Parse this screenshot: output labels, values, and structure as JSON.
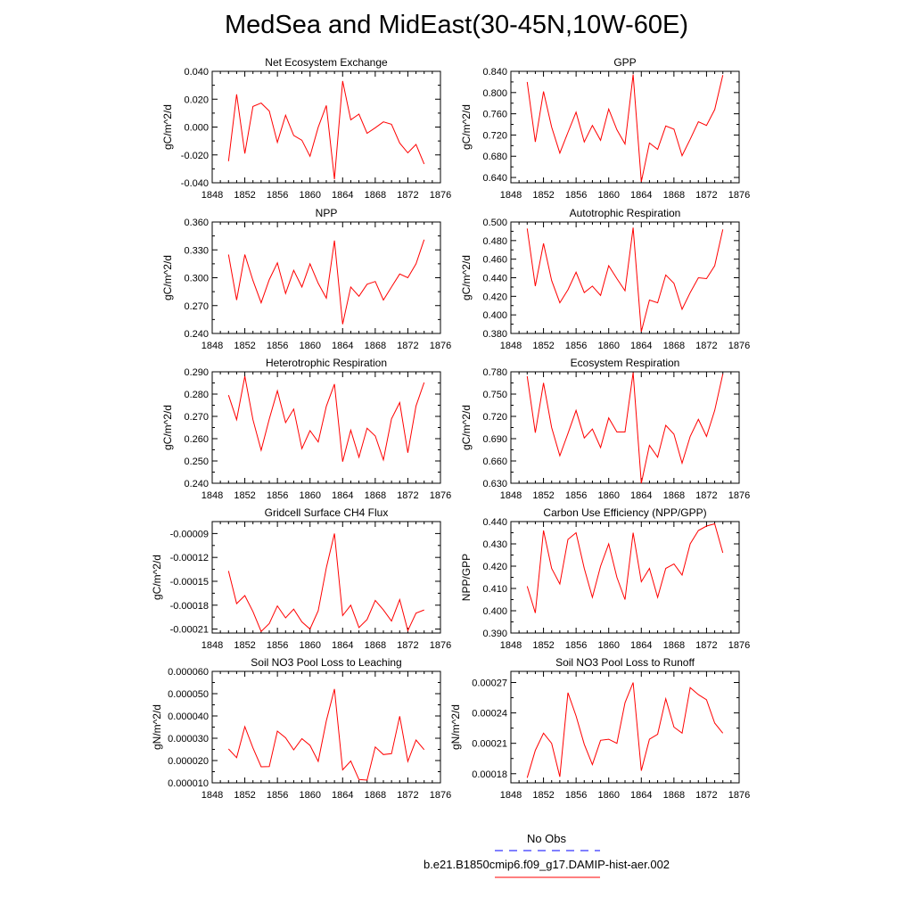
{
  "title": "MedSea and MidEast(30-45N,10W-60E)",
  "colors": {
    "model": "#ff0000",
    "obs": "#0000ff"
  },
  "legend": {
    "obs_label": "No Obs",
    "model_label": "b.e21.B1850cmip6.f09_g17.DAMIP-hist-aer.002"
  },
  "chart_data": [
    {
      "type": "line",
      "title": "Net Ecosystem Exchange",
      "ylabel": "gC/m^2/d",
      "xlim": [
        1848,
        1876
      ],
      "ylim": [
        -0.04,
        0.04
      ],
      "xticks": [
        1848,
        1852,
        1856,
        1860,
        1864,
        1868,
        1872,
        1876
      ],
      "xticklabels": [
        "1848",
        "1852",
        "1856",
        "1860",
        "1864",
        "1868",
        "1872",
        "1876"
      ],
      "yticks": [
        -0.04,
        -0.02,
        0.0,
        0.02,
        0.04
      ],
      "yticklabels": [
        "-0.040",
        "-0.020",
        "0.000",
        "0.020",
        "0.040"
      ],
      "x": [
        1850,
        1851,
        1852,
        1853,
        1854,
        1855,
        1856,
        1857,
        1858,
        1859,
        1860,
        1861,
        1862,
        1863,
        1864,
        1865,
        1866,
        1867,
        1868,
        1869,
        1870,
        1871,
        1872,
        1873,
        1874
      ],
      "y": [
        -0.0245,
        0.0235,
        -0.019,
        0.0148,
        0.0172,
        0.0115,
        -0.011,
        0.0085,
        -0.006,
        -0.0095,
        -0.021,
        -0.0001,
        0.0155,
        -0.0375,
        0.033,
        0.0052,
        0.0093,
        -0.0045,
        -0.0005,
        0.0037,
        0.002,
        -0.0115,
        -0.0185,
        -0.0125,
        -0.0265
      ]
    },
    {
      "type": "line",
      "title": "GPP",
      "ylabel": "gC/m^2/d",
      "xlim": [
        1848,
        1876
      ],
      "ylim": [
        0.63,
        0.84
      ],
      "xticks": [
        1848,
        1852,
        1856,
        1860,
        1864,
        1868,
        1872,
        1876
      ],
      "xticklabels": [
        "1848",
        "1852",
        "1856",
        "1860",
        "1864",
        "1868",
        "1872",
        "1876"
      ],
      "yticks": [
        0.64,
        0.68,
        0.72,
        0.76,
        0.8,
        0.84
      ],
      "yticklabels": [
        "0.640",
        "0.680",
        "0.720",
        "0.760",
        "0.800",
        "0.840"
      ],
      "x": [
        1850,
        1851,
        1852,
        1853,
        1854,
        1855,
        1856,
        1857,
        1858,
        1859,
        1860,
        1861,
        1862,
        1863,
        1864,
        1865,
        1866,
        1867,
        1868,
        1869,
        1870,
        1871,
        1872,
        1873,
        1874
      ],
      "y": [
        0.82,
        0.707,
        0.802,
        0.735,
        0.686,
        0.725,
        0.763,
        0.707,
        0.738,
        0.71,
        0.769,
        0.73,
        0.703,
        0.834,
        0.632,
        0.705,
        0.693,
        0.737,
        0.731,
        0.681,
        0.712,
        0.745,
        0.738,
        0.768,
        0.833
      ]
    },
    {
      "type": "line",
      "title": "NPP",
      "ylabel": "gC/m^2/d",
      "xlim": [
        1848,
        1876
      ],
      "ylim": [
        0.24,
        0.36
      ],
      "xticks": [
        1848,
        1852,
        1856,
        1860,
        1864,
        1868,
        1872,
        1876
      ],
      "xticklabels": [
        "1848",
        "1852",
        "1856",
        "1860",
        "1864",
        "1868",
        "1872",
        "1876"
      ],
      "yticks": [
        0.24,
        0.27,
        0.3,
        0.33,
        0.36
      ],
      "yticklabels": [
        "0.240",
        "0.270",
        "0.300",
        "0.330",
        "0.360"
      ],
      "x": [
        1850,
        1851,
        1852,
        1853,
        1854,
        1855,
        1856,
        1857,
        1858,
        1859,
        1860,
        1861,
        1862,
        1863,
        1864,
        1865,
        1866,
        1867,
        1868,
        1869,
        1870,
        1871,
        1872,
        1873,
        1874
      ],
      "y": [
        0.325,
        0.276,
        0.325,
        0.297,
        0.273,
        0.298,
        0.316,
        0.283,
        0.308,
        0.29,
        0.315,
        0.294,
        0.278,
        0.34,
        0.25,
        0.29,
        0.28,
        0.293,
        0.296,
        0.276,
        0.29,
        0.304,
        0.3,
        0.315,
        0.341
      ]
    },
    {
      "type": "line",
      "title": "Autotrophic Respiration",
      "ylabel": "gC/m^2/d",
      "xlim": [
        1848,
        1876
      ],
      "ylim": [
        0.38,
        0.5
      ],
      "xticks": [
        1848,
        1852,
        1856,
        1860,
        1864,
        1868,
        1872,
        1876
      ],
      "xticklabels": [
        "1848",
        "1852",
        "1856",
        "1860",
        "1864",
        "1868",
        "1872",
        "1876"
      ],
      "yticks": [
        0.38,
        0.4,
        0.42,
        0.44,
        0.46,
        0.48,
        0.5
      ],
      "yticklabels": [
        "0.380",
        "0.400",
        "0.420",
        "0.440",
        "0.460",
        "0.480",
        "0.500"
      ],
      "x": [
        1850,
        1851,
        1852,
        1853,
        1854,
        1855,
        1856,
        1857,
        1858,
        1859,
        1860,
        1861,
        1862,
        1863,
        1864,
        1865,
        1866,
        1867,
        1868,
        1869,
        1870,
        1871,
        1872,
        1873,
        1874
      ],
      "y": [
        0.493,
        0.431,
        0.477,
        0.437,
        0.413,
        0.427,
        0.446,
        0.424,
        0.431,
        0.421,
        0.453,
        0.439,
        0.426,
        0.494,
        0.382,
        0.416,
        0.413,
        0.443,
        0.434,
        0.406,
        0.424,
        0.44,
        0.439,
        0.453,
        0.492
      ]
    },
    {
      "type": "line",
      "title": "Heterotrophic Respiration",
      "ylabel": "gC/m^2/d",
      "xlim": [
        1848,
        1876
      ],
      "ylim": [
        0.24,
        0.29
      ],
      "xticks": [
        1848,
        1852,
        1856,
        1860,
        1864,
        1868,
        1872,
        1876
      ],
      "xticklabels": [
        "1848",
        "1852",
        "1856",
        "1860",
        "1864",
        "1868",
        "1872",
        "1876"
      ],
      "yticks": [
        0.24,
        0.25,
        0.26,
        0.27,
        0.28,
        0.29
      ],
      "yticklabels": [
        "0.240",
        "0.250",
        "0.260",
        "0.270",
        "0.280",
        "0.290"
      ],
      "x": [
        1850,
        1851,
        1852,
        1853,
        1854,
        1855,
        1856,
        1857,
        1858,
        1859,
        1860,
        1861,
        1862,
        1863,
        1864,
        1865,
        1866,
        1867,
        1868,
        1869,
        1870,
        1871,
        1872,
        1873,
        1874
      ],
      "y": [
        0.2795,
        0.2685,
        0.288,
        0.2685,
        0.2548,
        0.2688,
        0.2815,
        0.2672,
        0.2733,
        0.2555,
        0.2636,
        0.2585,
        0.2745,
        0.2845,
        0.2497,
        0.2638,
        0.2517,
        0.2647,
        0.2612,
        0.2505,
        0.2689,
        0.2762,
        0.2537,
        0.2747,
        0.2852
      ]
    },
    {
      "type": "line",
      "title": "Ecosystem Respiration",
      "ylabel": "gC/m^2/d",
      "xlim": [
        1848,
        1876
      ],
      "ylim": [
        0.63,
        0.78
      ],
      "xticks": [
        1848,
        1852,
        1856,
        1860,
        1864,
        1868,
        1872,
        1876
      ],
      "xticklabels": [
        "1848",
        "1852",
        "1856",
        "1860",
        "1864",
        "1868",
        "1872",
        "1876"
      ],
      "yticks": [
        0.63,
        0.66,
        0.69,
        0.72,
        0.75,
        0.78
      ],
      "yticklabels": [
        "0.630",
        "0.660",
        "0.690",
        "0.720",
        "0.750",
        "0.780"
      ],
      "x": [
        1850,
        1851,
        1852,
        1853,
        1854,
        1855,
        1856,
        1857,
        1858,
        1859,
        1860,
        1861,
        1862,
        1863,
        1864,
        1865,
        1866,
        1867,
        1868,
        1869,
        1870,
        1871,
        1872,
        1873,
        1874
      ],
      "y": [
        0.774,
        0.698,
        0.765,
        0.705,
        0.667,
        0.697,
        0.728,
        0.691,
        0.703,
        0.678,
        0.718,
        0.699,
        0.699,
        0.779,
        0.63,
        0.681,
        0.665,
        0.708,
        0.696,
        0.657,
        0.693,
        0.716,
        0.693,
        0.728,
        0.777
      ]
    },
    {
      "type": "line",
      "title": "Gridcell Surface CH4 Flux",
      "ylabel": "gC/m^2/d",
      "xlim": [
        1848,
        1876
      ],
      "ylim": [
        -0.000215,
        -7.5e-05
      ],
      "xticks": [
        1848,
        1852,
        1856,
        1860,
        1864,
        1868,
        1872,
        1876
      ],
      "xticklabels": [
        "1848",
        "1852",
        "1856",
        "1860",
        "1864",
        "1868",
        "1872",
        "1876"
      ],
      "yticks": [
        -0.00021,
        -0.00018,
        -0.00015,
        -0.00012,
        -9e-05
      ],
      "yticklabels": [
        "-0.00021",
        "-0.00018",
        "-0.00015",
        "-0.00012",
        "-0.00009"
      ],
      "x": [
        1850,
        1851,
        1852,
        1853,
        1854,
        1855,
        1856,
        1857,
        1858,
        1859,
        1860,
        1861,
        1862,
        1863,
        1864,
        1865,
        1866,
        1867,
        1868,
        1869,
        1870,
        1871,
        1872,
        1873,
        1874
      ],
      "y": [
        -0.000137,
        -0.000178,
        -0.000168,
        -0.000188,
        -0.000213,
        -0.000203,
        -0.000181,
        -0.000196,
        -0.000185,
        -0.000201,
        -0.00021,
        -0.000187,
        -0.000133,
        -9e-05,
        -0.000193,
        -0.00018,
        -0.000208,
        -0.000198,
        -0.000174,
        -0.000186,
        -0.0002,
        -0.000173,
        -0.000212,
        -0.00019,
        -0.000186
      ]
    },
    {
      "type": "line",
      "title": "Carbon Use Efficiency (NPP/GPP)",
      "ylabel": "NPP/GPP",
      "xlim": [
        1848,
        1876
      ],
      "ylim": [
        0.39,
        0.44
      ],
      "xticks": [
        1848,
        1852,
        1856,
        1860,
        1864,
        1868,
        1872,
        1876
      ],
      "xticklabels": [
        "1848",
        "1852",
        "1856",
        "1860",
        "1864",
        "1868",
        "1872",
        "1876"
      ],
      "yticks": [
        0.39,
        0.4,
        0.41,
        0.42,
        0.43,
        0.44
      ],
      "yticklabels": [
        "0.390",
        "0.400",
        "0.410",
        "0.420",
        "0.430",
        "0.440"
      ],
      "x": [
        1850,
        1851,
        1852,
        1853,
        1854,
        1855,
        1856,
        1857,
        1858,
        1859,
        1860,
        1861,
        1862,
        1863,
        1864,
        1865,
        1866,
        1867,
        1868,
        1869,
        1870,
        1871,
        1872,
        1873,
        1874
      ],
      "y": [
        0.411,
        0.399,
        0.436,
        0.419,
        0.412,
        0.432,
        0.435,
        0.419,
        0.406,
        0.42,
        0.43,
        0.415,
        0.405,
        0.435,
        0.413,
        0.419,
        0.406,
        0.419,
        0.421,
        0.416,
        0.43,
        0.436,
        0.438,
        0.439,
        0.426
      ]
    },
    {
      "type": "line",
      "title": "Soil NO3 Pool Loss to Leaching",
      "ylabel": "gN/m^2/d",
      "xlim": [
        1848,
        1876
      ],
      "ylim": [
        1e-05,
        6e-05
      ],
      "xticks": [
        1848,
        1852,
        1856,
        1860,
        1864,
        1868,
        1872,
        1876
      ],
      "xticklabels": [
        "1848",
        "1852",
        "1856",
        "1860",
        "1864",
        "1868",
        "1872",
        "1876"
      ],
      "yticks": [
        1e-05,
        2e-05,
        3e-05,
        4e-05,
        5e-05,
        6e-05
      ],
      "yticklabels": [
        "0.000010",
        "0.000020",
        "0.000030",
        "0.000040",
        "0.000050",
        "0.000060"
      ],
      "x": [
        1850,
        1851,
        1852,
        1853,
        1854,
        1855,
        1856,
        1857,
        1858,
        1859,
        1860,
        1861,
        1862,
        1863,
        1864,
        1865,
        1866,
        1867,
        1868,
        1869,
        1870,
        1871,
        1872,
        1873,
        1874
      ],
      "y": [
        2.52e-05,
        2.13e-05,
        3.52e-05,
        2.57e-05,
        1.72e-05,
        1.73e-05,
        3.32e-05,
        3.02e-05,
        2.48e-05,
        2.98e-05,
        2.68e-05,
        1.96e-05,
        3.78e-05,
        5.21e-05,
        1.58e-05,
        1.98e-05,
        1.15e-05,
        1.12e-05,
        2.61e-05,
        2.27e-05,
        2.31e-05,
        3.99e-05,
        1.96e-05,
        2.92e-05,
        2.49e-05
      ]
    },
    {
      "type": "line",
      "title": "Soil NO3 Pool Loss to Runoff",
      "ylabel": "gN/m^2/d",
      "xlim": [
        1848,
        1876
      ],
      "ylim": [
        0.000171,
        0.000281
      ],
      "xticks": [
        1848,
        1852,
        1856,
        1860,
        1864,
        1868,
        1872,
        1876
      ],
      "xticklabels": [
        "1848",
        "1852",
        "1856",
        "1860",
        "1864",
        "1868",
        "1872",
        "1876"
      ],
      "yticks": [
        0.00018,
        0.00021,
        0.00024,
        0.00027
      ],
      "yticklabels": [
        "0.00018",
        "0.00021",
        "0.00024",
        "0.00027"
      ],
      "x": [
        1850,
        1851,
        1852,
        1853,
        1854,
        1855,
        1856,
        1857,
        1858,
        1859,
        1860,
        1861,
        1862,
        1863,
        1864,
        1865,
        1866,
        1867,
        1868,
        1869,
        1870,
        1871,
        1872,
        1873,
        1874
      ],
      "y": [
        0.000176,
        0.000203,
        0.00022,
        0.00021,
        0.000177,
        0.00026,
        0.000237,
        0.000209,
        0.000189,
        0.000213,
        0.000214,
        0.00021,
        0.00025,
        0.00027,
        0.000183,
        0.000214,
        0.000219,
        0.000254,
        0.000226,
        0.00022,
        0.000265,
        0.000258,
        0.000253,
        0.00023,
        0.00022
      ]
    }
  ]
}
